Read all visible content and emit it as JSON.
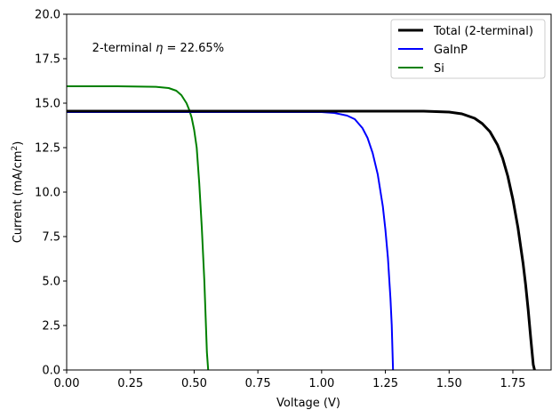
{
  "chart_data": {
    "type": "line",
    "title": "",
    "xlabel": "Voltage (V)",
    "ylabel_main": "Current (mA/cm",
    "ylabel_sup": "2",
    "ylabel_close": ")",
    "xlim": [
      0.0,
      1.9
    ],
    "ylim": [
      0.0,
      20.0
    ],
    "xticks": [
      0.0,
      0.25,
      0.5,
      0.75,
      1.0,
      1.25,
      1.5,
      1.75
    ],
    "xtick_labels": [
      "0.00",
      "0.25",
      "0.50",
      "0.75",
      "1.00",
      "1.25",
      "1.50",
      "1.75"
    ],
    "yticks": [
      0.0,
      2.5,
      5.0,
      7.5,
      10.0,
      12.5,
      15.0,
      17.5,
      20.0
    ],
    "ytick_labels": [
      "0.0",
      "2.5",
      "5.0",
      "7.5",
      "10.0",
      "12.5",
      "15.0",
      "17.5",
      "20.0"
    ],
    "grid": false,
    "legend_position": "top-right",
    "annotation": {
      "prefix": "2-terminal ",
      "symbol": "η",
      "suffix": " = 22.65%",
      "x": 0.1,
      "y": 18.1
    },
    "series": [
      {
        "name": "Total (2-terminal)",
        "color": "#000000",
        "width": 3,
        "x": [
          0.0,
          0.5,
          1.0,
          1.2,
          1.4,
          1.5,
          1.55,
          1.6,
          1.63,
          1.66,
          1.69,
          1.71,
          1.73,
          1.75,
          1.77,
          1.79,
          1.8,
          1.81,
          1.82,
          1.83,
          1.835
        ],
        "y": [
          14.55,
          14.55,
          14.55,
          14.55,
          14.55,
          14.5,
          14.4,
          14.15,
          13.85,
          13.4,
          12.65,
          11.9,
          10.9,
          9.6,
          8.0,
          6.0,
          4.8,
          3.4,
          1.8,
          0.3,
          0.0
        ]
      },
      {
        "name": "GaInP",
        "color": "#0000ff",
        "width": 2,
        "x": [
          0.0,
          0.5,
          0.9,
          1.0,
          1.05,
          1.1,
          1.13,
          1.16,
          1.18,
          1.2,
          1.22,
          1.24,
          1.25,
          1.26,
          1.27,
          1.275,
          1.28
        ],
        "y": [
          14.5,
          14.5,
          14.5,
          14.5,
          14.45,
          14.3,
          14.1,
          13.6,
          13.05,
          12.2,
          11.0,
          9.2,
          7.9,
          6.3,
          4.0,
          2.5,
          0.0
        ]
      },
      {
        "name": "Si",
        "color": "#008000",
        "width": 2,
        "x": [
          0.0,
          0.2,
          0.35,
          0.4,
          0.43,
          0.45,
          0.47,
          0.48,
          0.49,
          0.5,
          0.51,
          0.52,
          0.53,
          0.54,
          0.545,
          0.55,
          0.555
        ],
        "y": [
          15.95,
          15.95,
          15.92,
          15.85,
          15.7,
          15.45,
          15.0,
          14.65,
          14.2,
          13.5,
          12.5,
          10.5,
          8.0,
          5.0,
          3.0,
          1.0,
          0.0
        ]
      }
    ]
  }
}
